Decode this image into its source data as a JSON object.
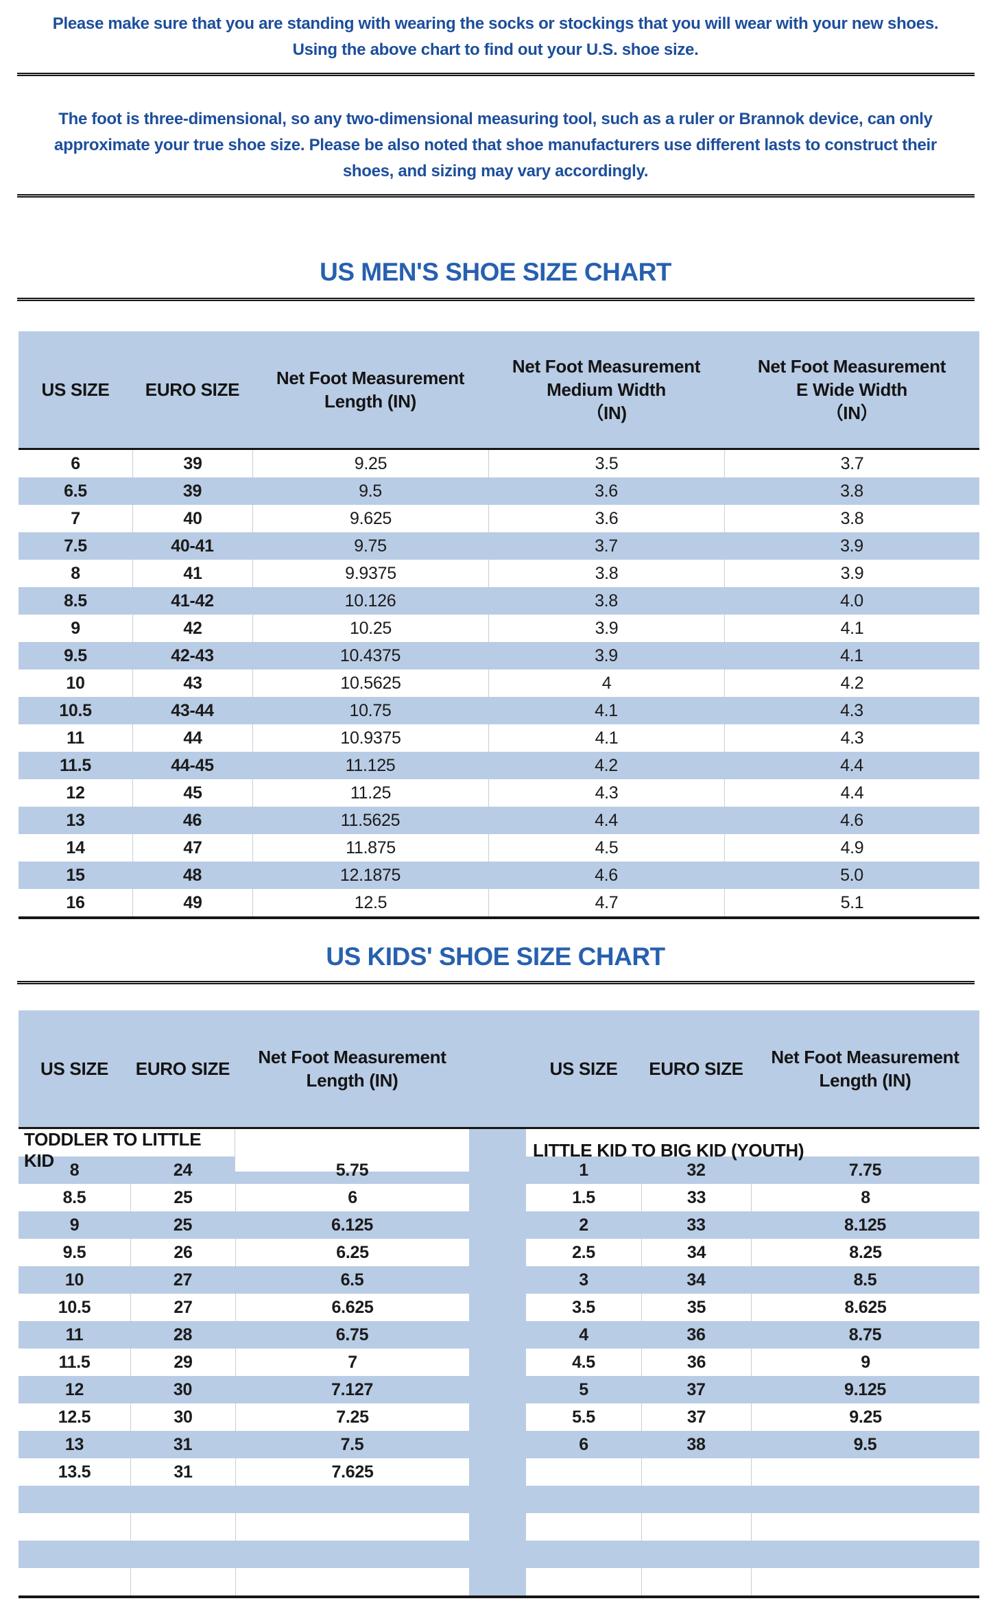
{
  "intro_block1": {
    "lines": [
      "Please make sure that you are standing with wearing the socks or stockings that you will wear with your new shoes.",
      "Using the above chart to find out your U.S. shoe size."
    ]
  },
  "intro_block2": {
    "lines": [
      "The foot is three-dimensional, so any two-dimensional measuring tool, such as a ruler or Brannok device, can only",
      "approximate your true shoe size. Please be also noted that shoe manufacturers use different lasts to construct their",
      "shoes, and sizing may vary accordingly."
    ]
  },
  "colors": {
    "band_blue": "#b9cce5",
    "title_blue": "#2760ae",
    "paragraph_blue": "#1d4e9b",
    "rule_black": "#161616",
    "gridline": "#c6cedb"
  },
  "mens_chart": {
    "title": "US MEN'S SHOE SIZE CHART",
    "headers": [
      "US SIZE",
      "EURO SIZE",
      "Net Foot Measurement\nLength (IN)",
      "Net Foot Measurement\nMedium Width\n（IN)",
      "Net Foot Measurement\nE Wide Width\n（IN）"
    ],
    "rows": [
      [
        "6",
        "39",
        "9.25",
        "3.5",
        "3.7"
      ],
      [
        "6.5",
        "39",
        "9.5",
        "3.6",
        "3.8"
      ],
      [
        "7",
        "40",
        "9.625",
        "3.6",
        "3.8"
      ],
      [
        "7.5",
        "40-41",
        "9.75",
        "3.7",
        "3.9"
      ],
      [
        "8",
        "41",
        "9.9375",
        "3.8",
        "3.9"
      ],
      [
        "8.5",
        "41-42",
        "10.126",
        "3.8",
        "4.0"
      ],
      [
        "9",
        "42",
        "10.25",
        "3.9",
        "4.1"
      ],
      [
        "9.5",
        "42-43",
        "10.4375",
        "3.9",
        "4.1"
      ],
      [
        "10",
        "43",
        "10.5625",
        "4",
        "4.2"
      ],
      [
        "10.5",
        "43-44",
        "10.75",
        "4.1",
        "4.3"
      ],
      [
        "11",
        "44",
        "10.9375",
        "4.1",
        "4.3"
      ],
      [
        "11.5",
        "44-45",
        "11.125",
        "4.2",
        "4.4"
      ],
      [
        "12",
        "45",
        "11.25",
        "4.3",
        "4.4"
      ],
      [
        "13",
        "46",
        "11.5625",
        "4.4",
        "4.6"
      ],
      [
        "14",
        "47",
        "11.875",
        "4.5",
        "4.9"
      ],
      [
        "15",
        "48",
        "12.1875",
        "4.6",
        "5.0"
      ],
      [
        "16",
        "49",
        "12.5",
        "4.7",
        "5.1"
      ]
    ]
  },
  "kids_chart": {
    "title": "US KIDS' SHOE SIZE CHART",
    "headers": [
      "US SIZE",
      "EURO SIZE",
      "Net Foot Measurement\nLength (IN)",
      "",
      "US SIZE",
      "EURO SIZE",
      "Net Foot Measurement\nLength (IN)"
    ],
    "section_left": "TODDLER TO LITTLE KID",
    "section_right": "LITTLE KID TO BIG KID (YOUTH)",
    "rows": [
      {
        "left": [
          "8",
          "24",
          "5.75"
        ],
        "right": [
          "1",
          "32",
          "7.75"
        ]
      },
      {
        "left": [
          "8.5",
          "25",
          "6"
        ],
        "right": [
          "1.5",
          "33",
          "8"
        ]
      },
      {
        "left": [
          "9",
          "25",
          "6.125"
        ],
        "right": [
          "2",
          "33",
          "8.125"
        ]
      },
      {
        "left": [
          "9.5",
          "26",
          "6.25"
        ],
        "right": [
          "2.5",
          "34",
          "8.25"
        ]
      },
      {
        "left": [
          "10",
          "27",
          "6.5"
        ],
        "right": [
          "3",
          "34",
          "8.5"
        ]
      },
      {
        "left": [
          "10.5",
          "27",
          "6.625"
        ],
        "right": [
          "3.5",
          "35",
          "8.625"
        ]
      },
      {
        "left": [
          "11",
          "28",
          "6.75"
        ],
        "right": [
          "4",
          "36",
          "8.75"
        ]
      },
      {
        "left": [
          "11.5",
          "29",
          "7"
        ],
        "right": [
          "4.5",
          "36",
          "9"
        ]
      },
      {
        "left": [
          "12",
          "30",
          "7.127"
        ],
        "right": [
          "5",
          "37",
          "9.125"
        ]
      },
      {
        "left": [
          "12.5",
          "30",
          "7.25"
        ],
        "right": [
          "5.5",
          "37",
          "9.25"
        ]
      },
      {
        "left": [
          "13",
          "31",
          "7.5"
        ],
        "right": [
          "6",
          "38",
          "9.5"
        ]
      },
      {
        "left": [
          "13.5",
          "31",
          "7.625"
        ],
        "right": [
          "",
          "",
          ""
        ]
      },
      {
        "left": [
          "",
          "",
          ""
        ],
        "right": [
          "",
          "",
          ""
        ]
      },
      {
        "left": [
          "",
          "",
          ""
        ],
        "right": [
          "",
          "",
          ""
        ]
      },
      {
        "left": [
          "",
          "",
          ""
        ],
        "right": [
          "",
          "",
          ""
        ]
      },
      {
        "left": [
          "",
          "",
          ""
        ],
        "right": [
          "",
          "",
          ""
        ]
      }
    ]
  }
}
